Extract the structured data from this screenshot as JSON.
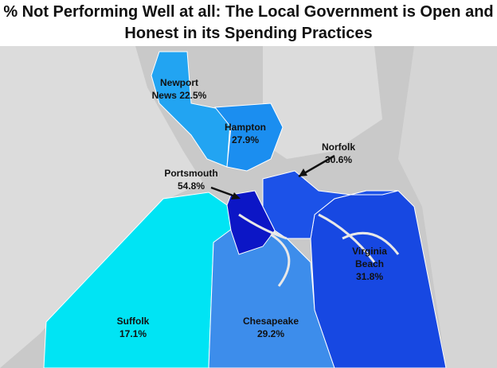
{
  "title": "% Not Performing Well at all: The Local Government is Open and Honest in its Spending Practices",
  "regions": [
    {
      "name": "Suffolk",
      "value": 17.1,
      "value_label": "17.1%",
      "color": "#00e4f4"
    },
    {
      "name": "Chesapeake",
      "value": 29.2,
      "value_label": "29.2%",
      "color": "#3d8deb"
    },
    {
      "name": "Virginia Beach",
      "value": 31.8,
      "value_label": "31.8%",
      "color": "#1748e2"
    },
    {
      "name": "Norfolk",
      "value": 30.6,
      "value_label": "30.6%",
      "color": "#1c52e8"
    },
    {
      "name": "Portsmouth",
      "value": 54.8,
      "value_label": "54.8%",
      "color": "#0c16c6"
    },
    {
      "name": "Newport News",
      "value": 22.5,
      "value_label": "22.5%",
      "color": "#22a4f2"
    },
    {
      "name": "Hampton",
      "value": 27.9,
      "value_label": "27.9%",
      "color": "#1b8ef0"
    }
  ]
}
